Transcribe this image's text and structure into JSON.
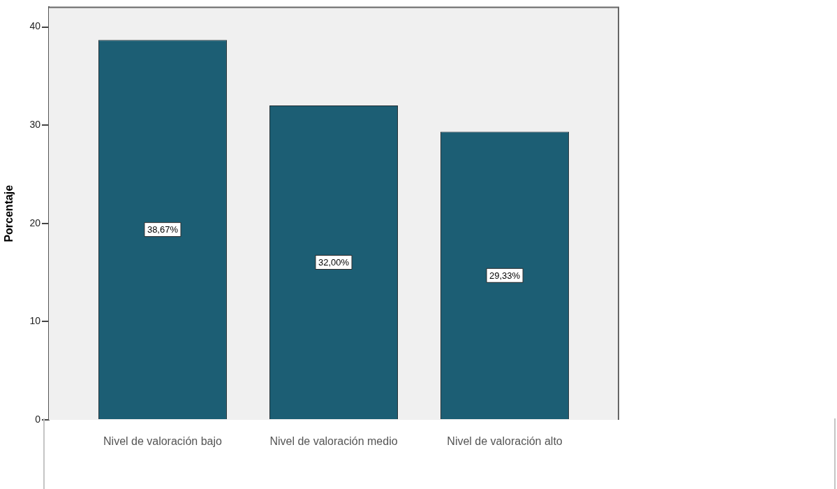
{
  "chart_data": {
    "type": "bar",
    "ylabel": "Porcentaje",
    "categories": [
      "Nivel de valoración bajo",
      "Nivel de valoración medio",
      "Nivel de valoración alto"
    ],
    "values": [
      38.67,
      32.0,
      29.33
    ],
    "value_labels": [
      "38,67%",
      "32,00%",
      "29,33%"
    ],
    "color": "#1c5e74",
    "ylim": [
      0,
      42
    ],
    "yticks": [
      0,
      10,
      20,
      30,
      40
    ],
    "grid": false
  }
}
